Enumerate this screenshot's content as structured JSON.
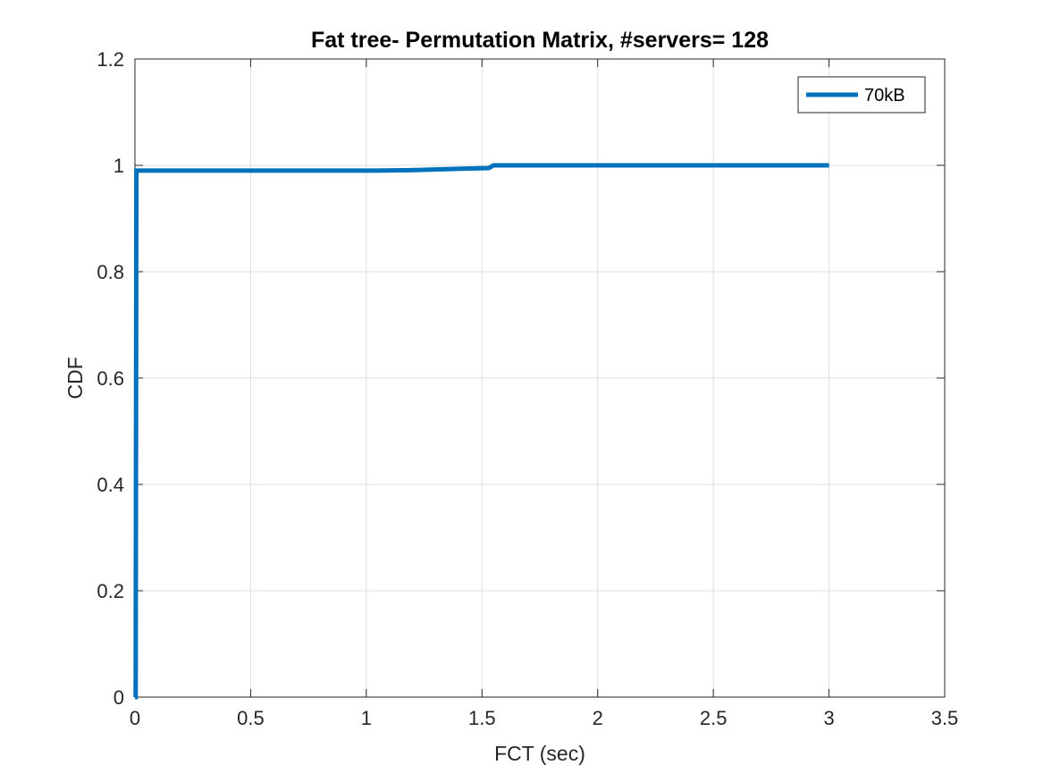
{
  "chart_data": {
    "type": "line",
    "title": "Fat tree- Permutation Matrix, #servers= 128",
    "xlabel": "FCT (sec)",
    "ylabel": "CDF",
    "xlim": [
      0,
      3.5
    ],
    "ylim": [
      0,
      1.2
    ],
    "xticks": [
      0,
      0.5,
      1,
      1.5,
      2,
      2.5,
      3,
      3.5
    ],
    "xtick_labels": [
      "0",
      "0.5",
      "1",
      "1.5",
      "2",
      "2.5",
      "3",
      "3.5"
    ],
    "yticks": [
      0,
      0.2,
      0.4,
      0.6,
      0.8,
      1,
      1.2
    ],
    "ytick_labels": [
      "0",
      "0.2",
      "0.4",
      "0.6",
      "0.8",
      "1",
      "1.2"
    ],
    "grid": true,
    "legend_position": "top-right",
    "series": [
      {
        "name": "70kB",
        "color": "#0072BD",
        "points": [
          [
            0,
            0
          ],
          [
            0.003,
            0
          ],
          [
            0.006,
            0.99
          ],
          [
            1.05,
            0.99
          ],
          [
            1.2,
            0.991
          ],
          [
            1.35,
            0.993
          ],
          [
            1.53,
            0.995
          ],
          [
            1.55,
            1.0
          ],
          [
            1.76,
            1.0
          ],
          [
            3.0,
            1.0
          ]
        ]
      }
    ]
  }
}
